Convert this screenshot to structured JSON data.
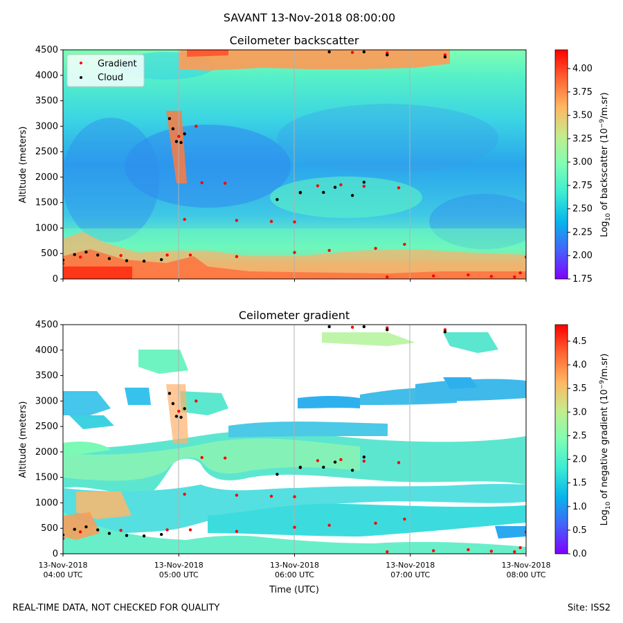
{
  "header": {
    "suptitle": "SAVANT 13-Nov-2018 08:00:00"
  },
  "footer": {
    "left_note": "REAL-TIME DATA, NOT CHECKED FOR QUALITY",
    "site": "Site: ISS2"
  },
  "x_axis": {
    "label": "Time (UTC)",
    "ticks": [
      {
        "line1": "13-Nov-2018",
        "line2": "04:00 UTC",
        "hour": 4
      },
      {
        "line1": "13-Nov-2018",
        "line2": "05:00 UTC",
        "hour": 5
      },
      {
        "line1": "13-Nov-2018",
        "line2": "06:00 UTC",
        "hour": 6
      },
      {
        "line1": "13-Nov-2018",
        "line2": "07:00 UTC",
        "hour": 7
      },
      {
        "line1": "13-Nov-2018",
        "line2": "08:00 UTC",
        "hour": 8
      }
    ],
    "range_hours": [
      4,
      8
    ]
  },
  "legend": {
    "gradient": "Gradient",
    "cloud": "Cloud",
    "placement": "upper-left"
  },
  "colors": {
    "gradient_marker": "#ff0000",
    "cloud_marker": "#000000",
    "colormap": [
      "#8000ff",
      "#4462f9",
      "#07b5eb",
      "#3cecd3",
      "#7ffeb3",
      "#c4ec8d",
      "#ffb762",
      "#ff6534",
      "#ff0000"
    ]
  },
  "chart_data": [
    {
      "type": "heatmap",
      "title": "Ceilometer backscatter",
      "xlabel": "",
      "ylabel": "Altitude (meters)",
      "ylim": [
        0,
        4500
      ],
      "yticks": [
        "0",
        "500",
        "1000",
        "1500",
        "2000",
        "2500",
        "3000",
        "3500",
        "4000",
        "4500"
      ],
      "colorbar": {
        "label": "Log10 of backscatter (10^-9/m.sr)",
        "label_parts": {
          "pre": "Log",
          "sub": "10",
          "mid": " of backscatter (10",
          "sup": "−9",
          "post": "/m.sr)"
        },
        "range": [
          1.75,
          4.2
        ],
        "ticks": [
          "1.75",
          "2.00",
          "2.25",
          "2.50",
          "2.75",
          "3.00",
          "3.25",
          "3.50",
          "3.75",
          "4.00"
        ]
      },
      "series": [
        {
          "name": "Gradient",
          "points": [
            [
              4.0,
              300
            ],
            [
              4.15,
              430
            ],
            [
              4.5,
              460
            ],
            [
              4.9,
              470
            ],
            [
              5.1,
              470
            ],
            [
              5.5,
              440
            ],
            [
              6.0,
              520
            ],
            [
              6.3,
              560
            ],
            [
              6.7,
              600
            ],
            [
              6.95,
              680
            ],
            [
              5.05,
              1170
            ],
            [
              5.2,
              1890
            ],
            [
              5.4,
              1880
            ],
            [
              5.5,
              1150
            ],
            [
              5.8,
              1130
            ],
            [
              6.0,
              1120
            ],
            [
              6.05,
              1690
            ],
            [
              6.2,
              1830
            ],
            [
              6.4,
              1850
            ],
            [
              6.6,
              1820
            ],
            [
              6.9,
              1790
            ],
            [
              5.0,
              2800
            ],
            [
              5.15,
              3000
            ],
            [
              6.5,
              4450
            ],
            [
              6.8,
              4440
            ],
            [
              7.3,
              4400
            ],
            [
              6.8,
              40
            ],
            [
              7.2,
              60
            ],
            [
              7.5,
              80
            ],
            [
              7.7,
              50
            ],
            [
              7.9,
              40
            ],
            [
              7.95,
              120
            ],
            [
              8.0,
              430
            ]
          ]
        },
        {
          "name": "Cloud",
          "points": [
            [
              4.0,
              370
            ],
            [
              4.1,
              480
            ],
            [
              4.2,
              530
            ],
            [
              4.3,
              470
            ],
            [
              4.4,
              400
            ],
            [
              4.55,
              360
            ],
            [
              4.7,
              350
            ],
            [
              4.85,
              380
            ],
            [
              4.92,
              3150
            ],
            [
              4.95,
              2950
            ],
            [
              4.98,
              2700
            ],
            [
              5.05,
              2850
            ],
            [
              5.02,
              2680
            ],
            [
              5.85,
              1560
            ],
            [
              6.05,
              1700
            ],
            [
              6.25,
              1700
            ],
            [
              6.35,
              1800
            ],
            [
              6.5,
              1640
            ],
            [
              6.6,
              1900
            ],
            [
              6.3,
              4460
            ],
            [
              6.6,
              4460
            ],
            [
              6.8,
              4400
            ],
            [
              7.3,
              4360
            ]
          ]
        }
      ]
    },
    {
      "type": "heatmap",
      "title": "Ceilometer gradient",
      "xlabel": "Time (UTC)",
      "ylabel": "Altitude (meters)",
      "ylim": [
        0,
        4500
      ],
      "yticks": [
        "0",
        "500",
        "1000",
        "1500",
        "2000",
        "2500",
        "3000",
        "3500",
        "4000",
        "4500"
      ],
      "colorbar": {
        "label": "Log10 of negative gradient (10^-9/m.sr)",
        "label_parts": {
          "pre": "Log",
          "sub": "10",
          "mid": " of negative gradient (10",
          "sup": "−9",
          "post": "/m.sr)"
        },
        "range": [
          0.0,
          4.85
        ],
        "ticks": [
          "0.0",
          "0.5",
          "1.0",
          "1.5",
          "2.0",
          "2.5",
          "3.0",
          "3.5",
          "4.0",
          "4.5"
        ]
      },
      "series": [
        {
          "name": "Gradient",
          "points": [
            [
              4.0,
              300
            ],
            [
              4.15,
              430
            ],
            [
              4.5,
              460
            ],
            [
              4.9,
              470
            ],
            [
              5.1,
              470
            ],
            [
              5.5,
              440
            ],
            [
              6.0,
              520
            ],
            [
              6.3,
              560
            ],
            [
              6.7,
              600
            ],
            [
              6.95,
              680
            ],
            [
              5.05,
              1170
            ],
            [
              5.2,
              1890
            ],
            [
              5.4,
              1880
            ],
            [
              5.5,
              1150
            ],
            [
              5.8,
              1130
            ],
            [
              6.0,
              1120
            ],
            [
              6.05,
              1690
            ],
            [
              6.2,
              1830
            ],
            [
              6.4,
              1850
            ],
            [
              6.6,
              1820
            ],
            [
              6.9,
              1790
            ],
            [
              5.0,
              2800
            ],
            [
              5.15,
              3000
            ],
            [
              6.5,
              4450
            ],
            [
              6.8,
              4440
            ],
            [
              7.3,
              4400
            ],
            [
              6.8,
              40
            ],
            [
              7.2,
              60
            ],
            [
              7.5,
              80
            ],
            [
              7.7,
              50
            ],
            [
              7.9,
              40
            ],
            [
              7.95,
              120
            ],
            [
              8.0,
              430
            ]
          ]
        },
        {
          "name": "Cloud",
          "points": [
            [
              4.0,
              370
            ],
            [
              4.1,
              480
            ],
            [
              4.2,
              530
            ],
            [
              4.3,
              470
            ],
            [
              4.4,
              400
            ],
            [
              4.55,
              360
            ],
            [
              4.7,
              350
            ],
            [
              4.85,
              380
            ],
            [
              4.92,
              3150
            ],
            [
              4.95,
              2950
            ],
            [
              4.98,
              2700
            ],
            [
              5.05,
              2850
            ],
            [
              5.02,
              2680
            ],
            [
              5.85,
              1560
            ],
            [
              6.05,
              1700
            ],
            [
              6.25,
              1700
            ],
            [
              6.35,
              1800
            ],
            [
              6.5,
              1640
            ],
            [
              6.6,
              1900
            ],
            [
              6.3,
              4460
            ],
            [
              6.6,
              4460
            ],
            [
              6.8,
              4400
            ],
            [
              7.3,
              4360
            ]
          ]
        }
      ]
    }
  ]
}
